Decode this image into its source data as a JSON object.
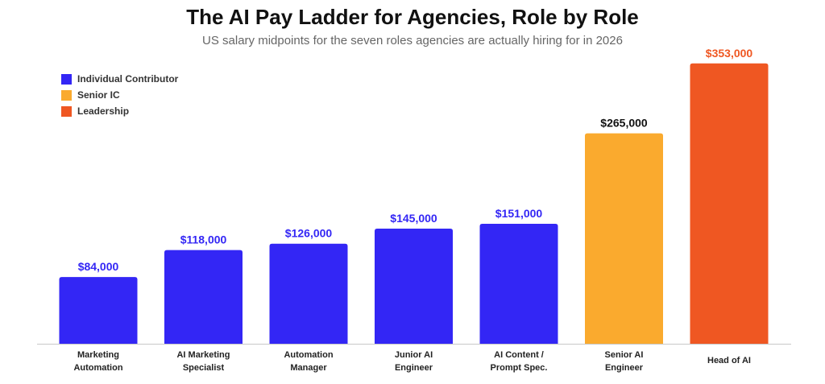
{
  "chart_data": {
    "type": "bar",
    "title": "The AI Pay Ladder for Agencies, Role by Role",
    "subtitle": "US salary midpoints for the seven roles agencies are actually hiring for in 2026",
    "xlabel": "",
    "ylabel": "",
    "ylim": [
      0,
      370000
    ],
    "grid": false,
    "legend_position": "top-left",
    "legend": [
      {
        "name": "Individual Contributor",
        "color": "#3326F5"
      },
      {
        "name": "Senior IC",
        "color": "#FAAA2E"
      },
      {
        "name": "Leadership",
        "color": "#EF5722"
      }
    ],
    "categories": [
      [
        "Marketing",
        "Automation"
      ],
      [
        "AI Marketing",
        "Specialist"
      ],
      [
        "Automation",
        "Manager"
      ],
      [
        "Junior AI",
        "Engineer"
      ],
      [
        "AI Content /",
        "Prompt Spec."
      ],
      [
        "Senior AI",
        "Engineer"
      ],
      [
        "Head of AI"
      ]
    ],
    "values": [
      84000,
      118000,
      126000,
      145000,
      151000,
      265000,
      353000
    ],
    "value_labels": [
      "$84,000",
      "$118,000",
      "$126,000",
      "$145,000",
      "$151,000",
      "$265,000",
      "$353,000"
    ],
    "groups": [
      "Individual Contributor",
      "Individual Contributor",
      "Individual Contributor",
      "Individual Contributor",
      "Individual Contributor",
      "Senior IC",
      "Leadership"
    ],
    "label_colors": [
      "#3326F5",
      "#3326F5",
      "#3326F5",
      "#3326F5",
      "#3326F5",
      "#111111",
      "#EF5722"
    ]
  }
}
